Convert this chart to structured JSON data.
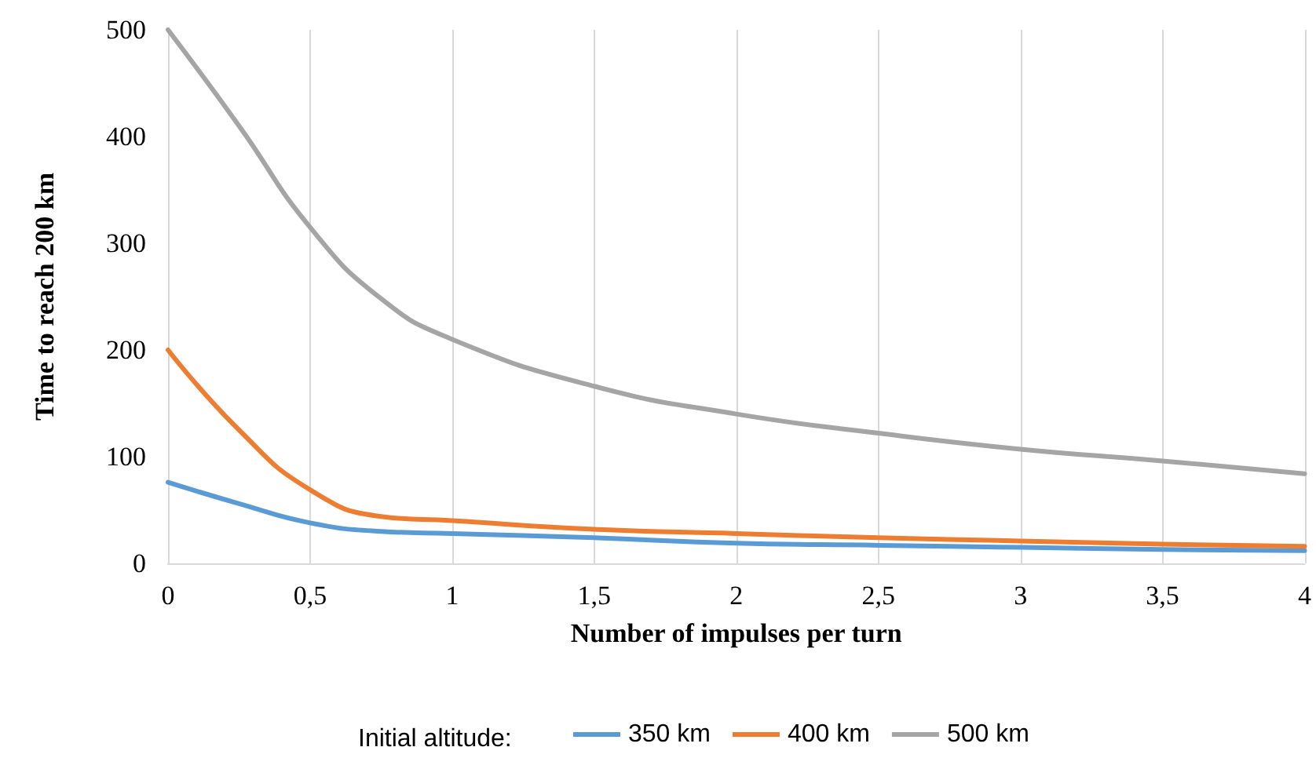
{
  "chart_data": {
    "type": "line",
    "xlabel": "Number of impulses per turn",
    "ylabel": "Time to reach 200 km",
    "legend_title": "Initial altitude:",
    "legend": "bottom",
    "grid": "x",
    "marker": "none",
    "line_style": "solid",
    "xlim": [
      0,
      4
    ],
    "xticks": [
      0,
      {
        "value": 0.5,
        "label": "0,5"
      },
      1,
      {
        "value": 1.5,
        "label": "1,5"
      },
      2,
      {
        "value": 2.5,
        "label": "2,5"
      },
      3,
      {
        "value": 3.5,
        "label": "3,5"
      },
      4
    ],
    "ylim": [
      0,
      500
    ],
    "yticks": [
      0,
      100,
      200,
      300,
      400,
      500
    ],
    "x": [
      0,
      0.25,
      0.5,
      0.75,
      1,
      1.5,
      2,
      2.5,
      3,
      3.5,
      4
    ],
    "series": [
      {
        "name": "350 km",
        "color": "#5b9bd5",
        "values": [
          76,
          56,
          38,
          30,
          28,
          24,
          19,
          17,
          15,
          13,
          12
        ]
      },
      {
        "name": "400 km",
        "color": "#ed7d31",
        "values": [
          200,
          125,
          69,
          44,
          40,
          32,
          28,
          24,
          21,
          18,
          16
        ]
      },
      {
        "name": "500 km",
        "color": "#a5a5a5",
        "values": [
          500,
          410,
          315,
          248,
          210,
          166,
          140,
          122,
          107,
          96,
          84
        ]
      }
    ]
  }
}
